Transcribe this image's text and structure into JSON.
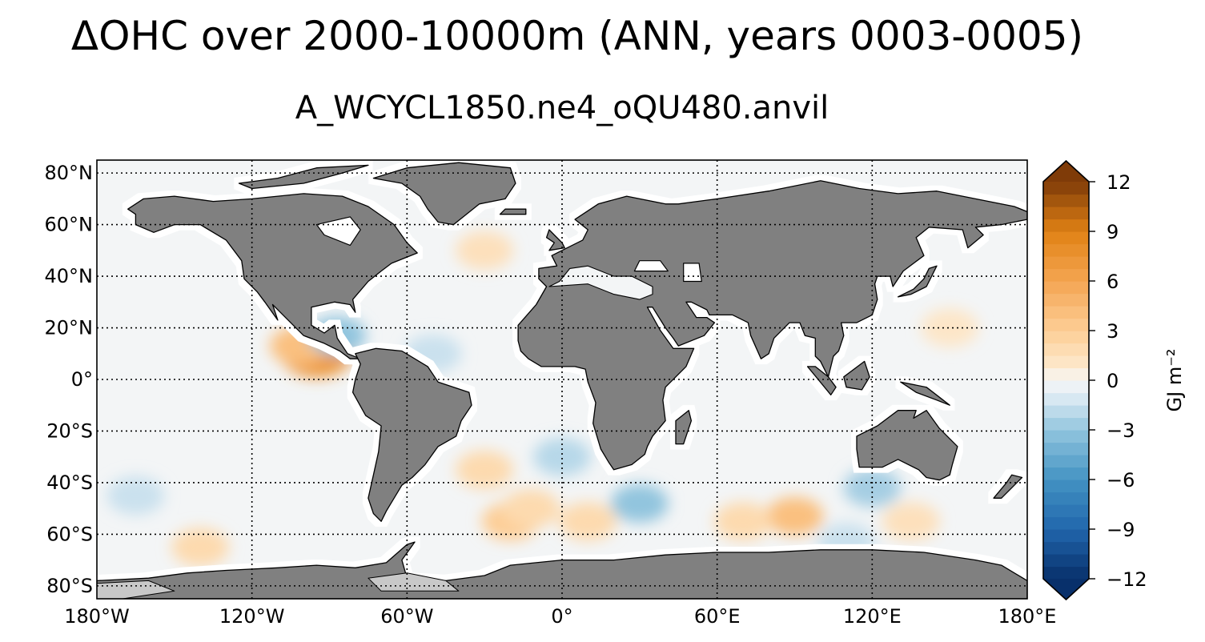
{
  "title": "ΔOHC over 2000-10000m (ANN, years 0003-0005)",
  "subtitle": "A_WCYCL1850.ne4_oQU480.anvil",
  "chart_data": {
    "type": "heatmap",
    "projection": "PlateCarree",
    "lon_range": [
      -180,
      180
    ],
    "lat_range": [
      -85,
      85
    ],
    "xticks": [
      {
        "value": -180,
        "label": "180°W"
      },
      {
        "value": -120,
        "label": "120°W"
      },
      {
        "value": -60,
        "label": "60°W"
      },
      {
        "value": 0,
        "label": "0°"
      },
      {
        "value": 60,
        "label": "60°E"
      },
      {
        "value": 120,
        "label": "120°E"
      },
      {
        "value": 180,
        "label": "180°E"
      }
    ],
    "yticks": [
      {
        "value": 80,
        "label": "80°N"
      },
      {
        "value": 60,
        "label": "60°N"
      },
      {
        "value": 40,
        "label": "40°N"
      },
      {
        "value": 20,
        "label": "20°N"
      },
      {
        "value": 0,
        "label": "0°"
      },
      {
        "value": -20,
        "label": "20°S"
      },
      {
        "value": -40,
        "label": "40°S"
      },
      {
        "value": -60,
        "label": "60°S"
      },
      {
        "value": -80,
        "label": "80°S"
      }
    ],
    "gridlines": "dotted",
    "colorbar": {
      "label": "GJ m⁻²",
      "range": [
        -12,
        12
      ],
      "extend": "both",
      "ticks": [
        {
          "value": 12,
          "label": "12"
        },
        {
          "value": 9,
          "label": "9"
        },
        {
          "value": 6,
          "label": "6"
        },
        {
          "value": 3,
          "label": "3"
        },
        {
          "value": 0,
          "label": "0"
        },
        {
          "value": -3,
          "label": "−3"
        },
        {
          "value": -6,
          "label": "−6"
        },
        {
          "value": -9,
          "label": "−9"
        },
        {
          "value": -12,
          "label": "−12"
        }
      ],
      "colormap": "blue-white-orange (diverging)"
    },
    "colors": {
      "land": "#808080",
      "ice_shelf": "#c8c8c8",
      "ocean_background": "#f3f5f6",
      "positive_max": "#7f3b08",
      "negative_max": "#08306b"
    },
    "features": [
      {
        "lon": -95,
        "lat": 10,
        "value": 7
      },
      {
        "lon": -102,
        "lat": 13,
        "value": 4
      },
      {
        "lon": -87,
        "lat": 17,
        "value": -3
      },
      {
        "lon": -30,
        "lat": 50,
        "value": 1.5
      },
      {
        "lon": -30,
        "lat": -35,
        "value": 2
      },
      {
        "lon": -20,
        "lat": -55,
        "value": 3
      },
      {
        "lon": -12,
        "lat": -50,
        "value": 2
      },
      {
        "lon": -140,
        "lat": -65,
        "value": 2
      },
      {
        "lon": -165,
        "lat": -45,
        "value": -1.5
      },
      {
        "lon": 0,
        "lat": -30,
        "value": -2
      },
      {
        "lon": 30,
        "lat": -48,
        "value": -3
      },
      {
        "lon": 10,
        "lat": -55,
        "value": 2
      },
      {
        "lon": 90,
        "lat": -53,
        "value": 4
      },
      {
        "lon": 70,
        "lat": -55,
        "value": 2
      },
      {
        "lon": 120,
        "lat": -42,
        "value": -2.5
      },
      {
        "lon": 135,
        "lat": -55,
        "value": 1.5
      },
      {
        "lon": -50,
        "lat": 10,
        "value": -1.5
      },
      {
        "lon": 150,
        "lat": 20,
        "value": 1
      },
      {
        "lon": 110,
        "lat": -63,
        "value": -1.5
      }
    ]
  }
}
